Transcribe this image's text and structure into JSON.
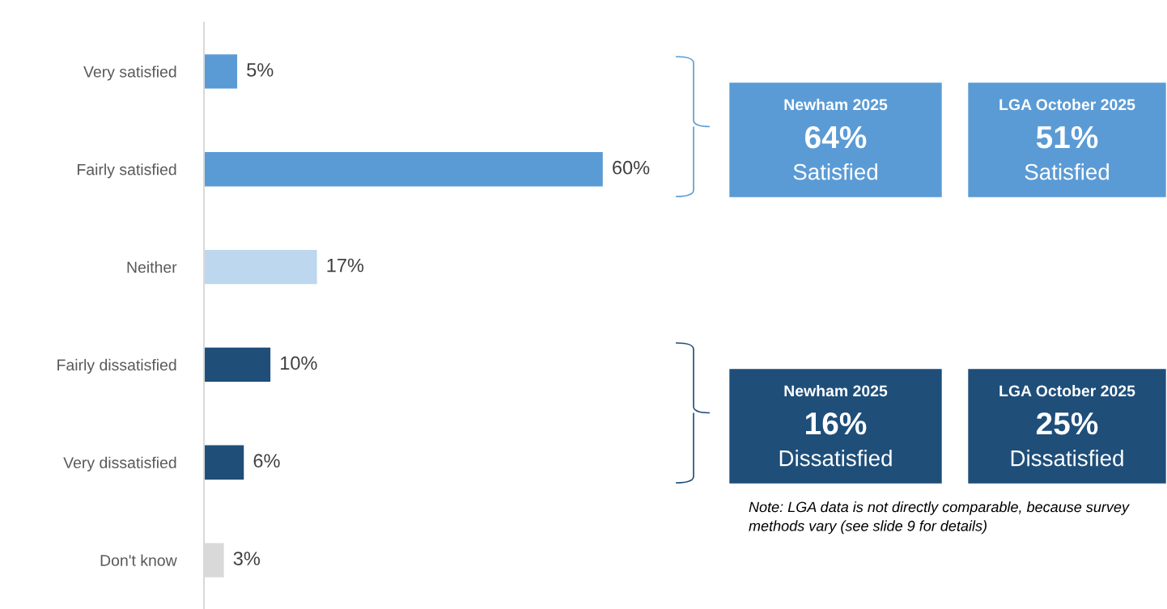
{
  "chart_data": [
    {
      "type": "bar",
      "orientation": "horizontal",
      "data_labels": true,
      "tick_labels": "y",
      "grid": false,
      "categories": [
        "Very satisfied",
        "Fairly satisfied",
        "Neither",
        "Fairly dissatisfied",
        "Very dissatisfied",
        "Don't know"
      ],
      "values": [
        5,
        60,
        17,
        10,
        6,
        3
      ],
      "value_labels": [
        "5%",
        "60%",
        "17%",
        "10%",
        "6%",
        "3%"
      ],
      "colors": [
        "#5b9bd5",
        "#5b9bd5",
        "#bdd7ee",
        "#1f4e79",
        "#1f4e79",
        "#d9d9d9"
      ]
    },
    {
      "type": "other",
      "annotations": [
        "Newham 2025\n64%\nSatisfied",
        "LGA October 2025\n51%\nSatisfied",
        "Newham 2025\n16%\nDissatisfied",
        "LGA October 2025\n25%\nDissatisfied",
        "Note: LGA data is not directly comparable, because survey methods vary (see slide 9 for details)"
      ],
      "colors": [
        "#5b9bd5",
        "#5b9bd5",
        "#1f4e79",
        "#1f4e79"
      ]
    }
  ]
}
